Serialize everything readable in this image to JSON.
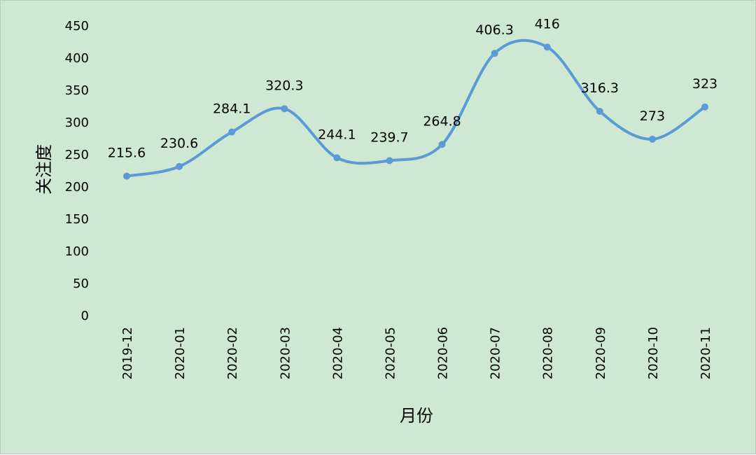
{
  "chart_data": {
    "type": "line",
    "smooth": true,
    "xlabel": "月份",
    "ylabel": "关注度",
    "categories": [
      "2019-12",
      "2020-01",
      "2020-02",
      "2020-03",
      "2020-04",
      "2020-05",
      "2020-06",
      "2020-07",
      "2020-08",
      "2020-09",
      "2020-10",
      "2020-11"
    ],
    "series": [
      {
        "values": [
          215.6,
          230.6,
          284.1,
          320.3,
          244.1,
          239.7,
          264.8,
          406.3,
          416,
          316.3,
          273,
          323
        ],
        "labels": [
          "215.6",
          "230.6",
          "284.1",
          "320.3",
          "244.1",
          "239.7",
          "264.8",
          "406.3",
          "416",
          "316.3",
          "273",
          "323"
        ]
      }
    ],
    "ylim": [
      0,
      450
    ],
    "yticks": [
      "0",
      "50",
      "100",
      "150",
      "200",
      "250",
      "300",
      "350",
      "400",
      "450"
    ],
    "grid": false,
    "legend": "none",
    "colors": {
      "background": "#cfe8d4",
      "line": "#5b9bd5"
    }
  }
}
